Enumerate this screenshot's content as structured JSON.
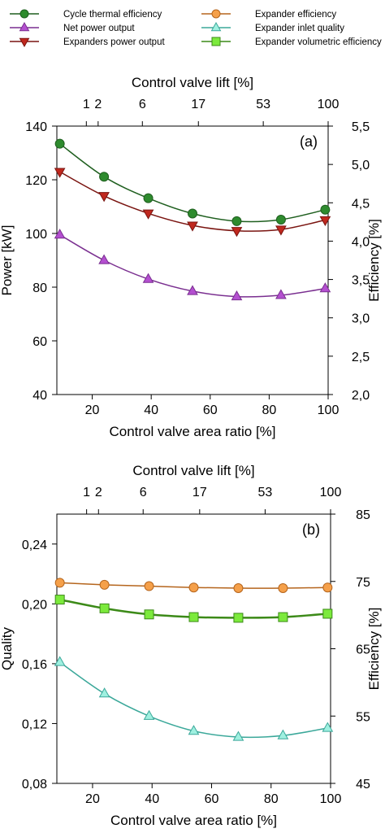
{
  "legend": {
    "items": [
      {
        "label": "Cycle thermal efficiency",
        "color": "#2e8b2e",
        "stroke": "#1f5f1f",
        "marker": "circle"
      },
      {
        "label": "Expander efficiency",
        "color": "#f5a04a",
        "stroke": "#b5651d",
        "marker": "circle"
      },
      {
        "label": "Net power output",
        "color": "#b44fd0",
        "stroke": "#7a2f90",
        "marker": "triangle-up"
      },
      {
        "label": "Expander inlet quality",
        "color": "#9ff0e0",
        "stroke": "#3ba89a",
        "marker": "triangle-up"
      },
      {
        "label": "Expanders power output",
        "color": "#c0281e",
        "stroke": "#7a1410",
        "marker": "triangle-down"
      },
      {
        "label": "Expander volumetric efficiency",
        "color": "#7cea3c",
        "stroke": "#3c8a18",
        "marker": "square"
      }
    ]
  },
  "chart_data": [
    {
      "id": "a",
      "type": "line",
      "panel_label": "(a)",
      "xlabel": "Control valve area ratio [%]",
      "ylabel_left": "Power [kW]",
      "ylabel_right": "Efficiency [%]",
      "top_axis_label": "Control valve lift [%]",
      "xlim": [
        8,
        100
      ],
      "xticks": [
        20,
        40,
        60,
        80,
        100
      ],
      "ylim_left": [
        40,
        140
      ],
      "yticks_left": [
        "40",
        "60",
        "80",
        "100",
        "120",
        "140"
      ],
      "ylim_right": [
        2.0,
        5.5
      ],
      "yticks_right": [
        "2,0",
        "2,5",
        "3,0",
        "3,5",
        "4,0",
        "4,5",
        "5,0",
        "5,5"
      ],
      "top_ticks": [
        {
          "label": "1",
          "x": 18
        },
        {
          "label": "2",
          "x": 22
        },
        {
          "label": "6",
          "x": 37
        },
        {
          "label": "17",
          "x": 56
        },
        {
          "label": "53",
          "x": 78
        },
        {
          "label": "100",
          "x": 100
        }
      ],
      "grid": false,
      "series": [
        {
          "name": "Cycle thermal efficiency",
          "axis": "right",
          "x": [
            9,
            24,
            39,
            54,
            69,
            84,
            99
          ],
          "y": [
            5.27,
            4.84,
            4.56,
            4.36,
            4.26,
            4.28,
            4.41
          ]
        },
        {
          "name": "Expanders power output",
          "axis": "left",
          "x": [
            9,
            24,
            39,
            54,
            69,
            84,
            99
          ],
          "y": [
            123,
            114,
            107.5,
            103,
            101,
            101.5,
            105
          ]
        },
        {
          "name": "Net power output",
          "axis": "left",
          "x": [
            9,
            24,
            39,
            54,
            69,
            84,
            99
          ],
          "y": [
            99.5,
            90,
            83,
            78.5,
            76.5,
            77,
            79.5
          ]
        }
      ]
    },
    {
      "id": "b",
      "type": "line",
      "panel_label": "(b)",
      "xlabel": "Control valve area ratio [%]",
      "ylabel_left": "Quality",
      "ylabel_right": "Efficiency [%]",
      "top_axis_label": "Control valve lift [%]",
      "xlim": [
        8,
        100
      ],
      "xticks": [
        20,
        40,
        60,
        80,
        100
      ],
      "ylim_left": [
        0.08,
        0.26
      ],
      "yticks_left": [
        "0,08",
        "0,12",
        "0,16",
        "0,20",
        "0,24"
      ],
      "ylim_right": [
        45,
        85
      ],
      "yticks_right": [
        "45",
        "55",
        "65",
        "75",
        "85"
      ],
      "top_ticks": [
        {
          "label": "1",
          "x": 18
        },
        {
          "label": "2",
          "x": 22
        },
        {
          "label": "6",
          "x": 37
        },
        {
          "label": "17",
          "x": 56
        },
        {
          "label": "53",
          "x": 78
        },
        {
          "label": "100",
          "x": 100
        }
      ],
      "grid": false,
      "series": [
        {
          "name": "Expander efficiency",
          "axis": "right",
          "x": [
            9,
            24,
            39,
            54,
            69,
            84,
            99
          ],
          "y": [
            74.8,
            74.5,
            74.3,
            74.1,
            74.0,
            74.0,
            74.1
          ]
        },
        {
          "name": "Expander volumetric efficiency",
          "axis": "right",
          "x": [
            9,
            24,
            39,
            54,
            69,
            84,
            99
          ],
          "y": [
            72.3,
            71.0,
            70.1,
            69.7,
            69.6,
            69.7,
            70.2
          ]
        },
        {
          "name": "Expander inlet quality",
          "axis": "left",
          "x": [
            9,
            24,
            39,
            54,
            69,
            84,
            99
          ],
          "y": [
            0.161,
            0.14,
            0.125,
            0.115,
            0.111,
            0.112,
            0.117
          ]
        }
      ]
    }
  ]
}
